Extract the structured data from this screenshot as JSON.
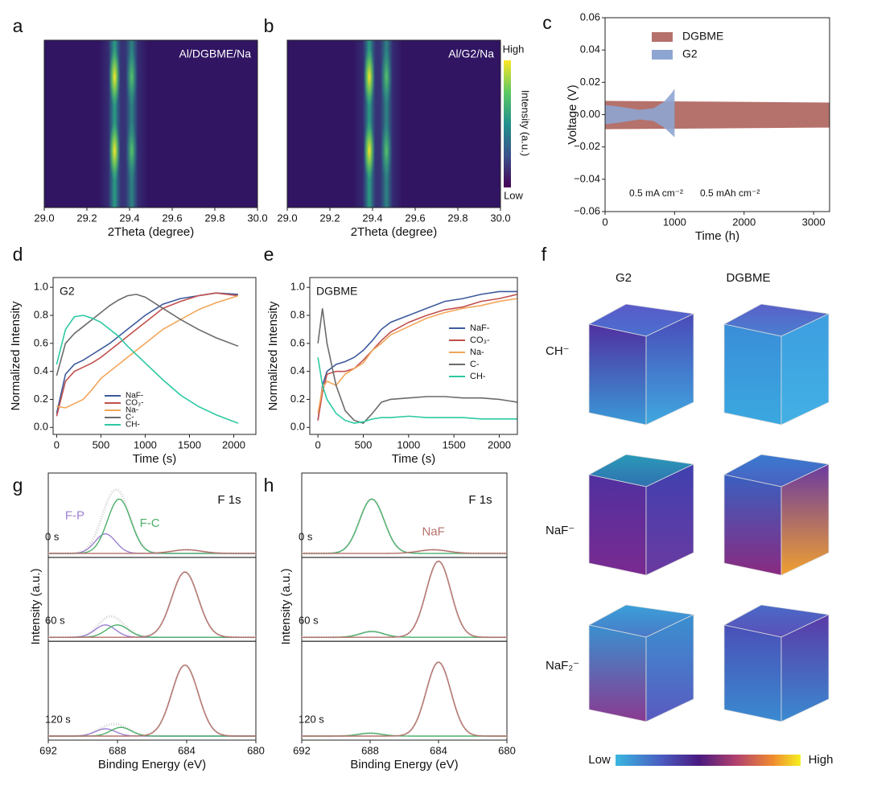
{
  "chart_data": [
    {
      "type": "heatmap",
      "panel": "a",
      "annotation": "Al/DGBME/Na",
      "xlabel": "2Theta (degree)",
      "xlim": [
        29.0,
        30.0
      ],
      "xticks": [
        {
          "value": 29.0,
          "label": "29.0"
        },
        29.2,
        29.4,
        29.6,
        29.8,
        {
          "value": 30.0,
          "label": "30.0"
        }
      ],
      "peaks": [
        29.33,
        29.41
      ]
    },
    {
      "type": "heatmap",
      "panel": "b",
      "annotation": "Al/G2/Na",
      "xlabel": "2Theta (degree)",
      "xlim": [
        29.0,
        30.0
      ],
      "xticks": [
        {
          "value": 29.0,
          "label": "29.0"
        },
        29.2,
        29.4,
        29.6,
        29.8,
        {
          "value": 30.0,
          "label": "30.0"
        }
      ],
      "peaks": [
        29.385,
        29.465
      ],
      "colorbar": {
        "high": "High",
        "low": "Low",
        "label": "Intensity (a.u.)"
      }
    },
    {
      "type": "band",
      "panel": "c",
      "xlabel": "Time (h)",
      "ylabel": "Voltage (V)",
      "xlim": [
        0,
        3230
      ],
      "ylim": [
        -0.06,
        0.06
      ],
      "xticks": [
        0,
        1000,
        2000,
        3000
      ],
      "yticks": [
        {
          "value": -0.06,
          "label": "−0.06"
        },
        {
          "value": -0.04,
          "label": "−0.04"
        },
        {
          "value": -0.02,
          "label": "−0.02"
        },
        {
          "value": 0,
          "label": "0.00"
        },
        0.02,
        0.04,
        0.06
      ],
      "legend": "upper right",
      "annotations": [
        "0.5 mA cm⁻²",
        "0.5 mAh cm⁻²"
      ],
      "series": [
        {
          "name": "DGBME",
          "color": "#b5716b",
          "x": [
            0,
            3230
          ],
          "upper": [
            0.0085,
            0.0075
          ],
          "lower": [
            -0.009,
            -0.008
          ]
        },
        {
          "name": "G2",
          "color": "#8ea5d2",
          "x": [
            0,
            200,
            500,
            700,
            850,
            950,
            1000
          ],
          "upper": [
            0.006,
            0.005,
            0.003,
            0.004,
            0.008,
            0.013,
            0.016
          ],
          "lower": [
            -0.006,
            -0.005,
            -0.003,
            -0.004,
            -0.008,
            -0.012,
            -0.014
          ]
        }
      ]
    },
    {
      "type": "line",
      "panel": "d",
      "title": "G2",
      "xlabel": "Time (s)",
      "ylabel": "Normalized Intensity",
      "xlim": [
        -40,
        2250
      ],
      "ylim": [
        -0.05,
        1.07
      ],
      "xticks": [
        0,
        500,
        1000,
        1500,
        2000
      ],
      "yticks": [
        {
          "value": 0,
          "label": "0.0"
        },
        0.2,
        0.4,
        0.6,
        0.8,
        {
          "value": 1,
          "label": "1.0"
        }
      ],
      "legend": "lower center",
      "x": [
        0,
        100,
        200,
        300,
        400,
        500,
        600,
        700,
        800,
        900,
        1000,
        1200,
        1400,
        1600,
        1800,
        2050
      ],
      "series": [
        {
          "name": "NaF-",
          "color": "#3d5a9c",
          "values": [
            0.1,
            0.38,
            0.45,
            0.48,
            0.52,
            0.56,
            0.6,
            0.65,
            0.7,
            0.75,
            0.8,
            0.88,
            0.92,
            0.94,
            0.96,
            0.95
          ]
        },
        {
          "name": "CO₃-",
          "color": "#c0504d",
          "values": [
            0.08,
            0.33,
            0.4,
            0.43,
            0.46,
            0.5,
            0.55,
            0.6,
            0.65,
            0.7,
            0.75,
            0.85,
            0.9,
            0.94,
            0.96,
            0.94
          ]
        },
        {
          "name": "Na-",
          "color": "#f2a65a",
          "values": [
            0.15,
            0.14,
            0.17,
            0.2,
            0.27,
            0.35,
            0.4,
            0.45,
            0.5,
            0.55,
            0.6,
            0.7,
            0.77,
            0.84,
            0.89,
            0.94
          ]
        },
        {
          "name": "C-",
          "color": "#6b6b6b",
          "values": [
            0.37,
            0.6,
            0.67,
            0.72,
            0.77,
            0.82,
            0.87,
            0.91,
            0.94,
            0.95,
            0.93,
            0.85,
            0.77,
            0.7,
            0.64,
            0.58
          ]
        },
        {
          "name": "CH-",
          "color": "#2dc9a3",
          "values": [
            0.45,
            0.7,
            0.79,
            0.8,
            0.78,
            0.75,
            0.7,
            0.65,
            0.58,
            0.52,
            0.46,
            0.34,
            0.23,
            0.15,
            0.09,
            0.03
          ]
        }
      ]
    },
    {
      "type": "line",
      "panel": "e",
      "title": "DGBME",
      "xlabel": "Time (s)",
      "ylabel": "Normalized Intensity",
      "xlim": [
        -90,
        2200
      ],
      "ylim": [
        -0.05,
        1.07
      ],
      "xticks": [
        0,
        500,
        1000,
        1500,
        2000
      ],
      "yticks": [
        {
          "value": 0,
          "label": "0.0"
        },
        0.2,
        0.4,
        0.6,
        0.8,
        {
          "value": 1,
          "label": "1.0"
        }
      ],
      "legend": "center right",
      "x": [
        0,
        50,
        100,
        200,
        300,
        400,
        500,
        600,
        700,
        800,
        1000,
        1200,
        1400,
        1600,
        1800,
        2000,
        2200
      ],
      "series": [
        {
          "name": "NaF-",
          "color": "#3d5a9c",
          "values": [
            0.05,
            0.3,
            0.4,
            0.45,
            0.47,
            0.5,
            0.55,
            0.62,
            0.7,
            0.75,
            0.8,
            0.85,
            0.9,
            0.92,
            0.95,
            0.97,
            0.97
          ]
        },
        {
          "name": "CO₃-",
          "color": "#c0504d",
          "values": [
            0.05,
            0.25,
            0.38,
            0.4,
            0.4,
            0.42,
            0.48,
            0.55,
            0.62,
            0.68,
            0.75,
            0.8,
            0.84,
            0.86,
            0.9,
            0.92,
            0.95
          ]
        },
        {
          "name": "Na-",
          "color": "#f2a65a",
          "values": [
            0.1,
            0.28,
            0.33,
            0.3,
            0.38,
            0.42,
            0.46,
            0.55,
            0.6,
            0.66,
            0.72,
            0.78,
            0.82,
            0.85,
            0.87,
            0.9,
            0.92
          ]
        },
        {
          "name": "C-",
          "color": "#6b6b6b",
          "values": [
            0.6,
            0.85,
            0.6,
            0.3,
            0.12,
            0.05,
            0.03,
            0.1,
            0.18,
            0.2,
            0.21,
            0.22,
            0.22,
            0.21,
            0.21,
            0.2,
            0.18
          ]
        },
        {
          "name": "CH-",
          "color": "#2dc9a3",
          "values": [
            0.5,
            0.3,
            0.2,
            0.1,
            0.05,
            0.03,
            0.04,
            0.06,
            0.07,
            0.07,
            0.08,
            0.07,
            0.07,
            0.07,
            0.06,
            0.06,
            0.06
          ]
        }
      ]
    },
    {
      "type": "spectra",
      "panel": "g",
      "title": "F 1s",
      "xlabel": "Binding Energy (eV)",
      "ylabel": "Intensity (a.u.)",
      "xlim": [
        692,
        680
      ],
      "xticks": [
        692,
        688,
        684,
        680
      ],
      "spectra": [
        {
          "label": "0 s",
          "components": [
            {
              "name": "F-P",
              "color": "#9b7fd0",
              "center": 688.7,
              "height": 0.27,
              "fwhm": 1.4
            },
            {
              "name": "F-C",
              "color": "#4caf6a",
              "center": 687.9,
              "height": 0.75,
              "fwhm": 1.6
            },
            {
              "color": "#b5716b",
              "center": 684.0,
              "height": 0.05,
              "fwhm": 2.0
            }
          ]
        },
        {
          "label": "60 s",
          "components": [
            {
              "color": "#9b7fd0",
              "center": 688.7,
              "height": 0.17,
              "fwhm": 1.4
            },
            {
              "color": "#4caf6a",
              "center": 688.0,
              "height": 0.17,
              "fwhm": 1.5
            },
            {
              "color": "#b5716b",
              "center": 684.1,
              "height": 0.9,
              "fwhm": 1.8
            }
          ]
        },
        {
          "label": "120 s",
          "components": [
            {
              "color": "#9b7fd0",
              "center": 688.7,
              "height": 0.1,
              "fwhm": 1.4
            },
            {
              "color": "#4caf6a",
              "center": 687.8,
              "height": 0.12,
              "fwhm": 1.4
            },
            {
              "color": "#b5716b",
              "center": 684.1,
              "height": 0.98,
              "fwhm": 1.8
            }
          ]
        }
      ]
    },
    {
      "type": "spectra",
      "panel": "h",
      "title": "F 1s",
      "xlabel": "Binding Energy (eV)",
      "ylabel": "Intensity (a.u.)",
      "xlim": [
        692,
        680
      ],
      "xticks": [
        692,
        688,
        684,
        680
      ],
      "spectra": [
        {
          "label": "0 s",
          "components": [
            {
              "color": "#4caf6a",
              "center": 687.9,
              "height": 0.75,
              "fwhm": 1.7
            },
            {
              "name": "NaF",
              "color": "#b5716b",
              "center": 684.3,
              "height": 0.05,
              "fwhm": 2.0
            }
          ]
        },
        {
          "label": "60 s",
          "components": [
            {
              "color": "#4caf6a",
              "center": 687.9,
              "height": 0.08,
              "fwhm": 1.6
            },
            {
              "color": "#b5716b",
              "center": 684.0,
              "height": 1.05,
              "fwhm": 1.7
            }
          ]
        },
        {
          "label": "120 s",
          "components": [
            {
              "color": "#4caf6a",
              "center": 688.0,
              "height": 0.04,
              "fwhm": 1.6
            },
            {
              "color": "#b5716b",
              "center": 684.0,
              "height": 1.02,
              "fwhm": 1.7
            }
          ]
        }
      ]
    }
  ],
  "panel_f": {
    "panel": "f",
    "columns": [
      "G2",
      "DGBME"
    ],
    "rows": [
      "CH⁻",
      "NaF⁻",
      "NaF₂⁻"
    ],
    "colorbar": {
      "low": "Low",
      "high": "High"
    }
  }
}
